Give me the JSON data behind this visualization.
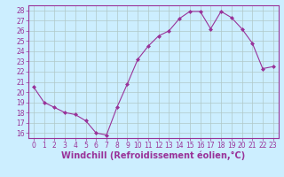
{
  "x": [
    0,
    1,
    2,
    3,
    4,
    5,
    6,
    7,
    8,
    9,
    10,
    11,
    12,
    13,
    14,
    15,
    16,
    17,
    18,
    19,
    20,
    21,
    22,
    23
  ],
  "y": [
    20.5,
    19.0,
    18.5,
    18.0,
    17.8,
    17.2,
    16.0,
    15.8,
    18.5,
    20.8,
    23.2,
    24.5,
    25.5,
    26.0,
    27.2,
    27.9,
    27.9,
    26.2,
    27.9,
    27.3,
    26.2,
    24.8,
    22.3,
    22.5
  ],
  "line_color": "#993399",
  "marker": "D",
  "marker_size": 2.0,
  "xlabel": "Windchill (Refroidissement éolien,°C)",
  "ylim": [
    15.5,
    28.5
  ],
  "yticks": [
    16,
    17,
    18,
    19,
    20,
    21,
    22,
    23,
    24,
    25,
    26,
    27,
    28
  ],
  "xlim": [
    -0.5,
    23.5
  ],
  "xticks": [
    0,
    1,
    2,
    3,
    4,
    5,
    6,
    7,
    8,
    9,
    10,
    11,
    12,
    13,
    14,
    15,
    16,
    17,
    18,
    19,
    20,
    21,
    22,
    23
  ],
  "bg_color": "#cceeff",
  "grid_color": "#b0c8c8",
  "axis_color": "#993399",
  "tick_label_fontsize": 5.5,
  "xlabel_fontsize": 7.0,
  "xlabel_color": "#993399"
}
